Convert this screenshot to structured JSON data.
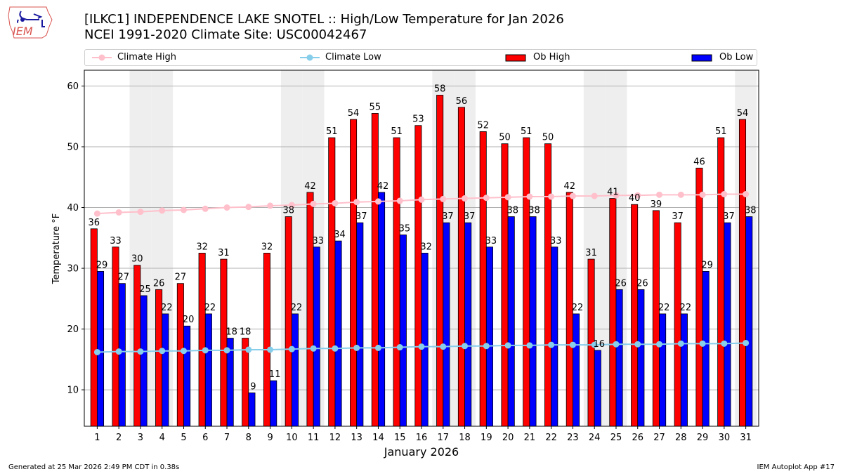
{
  "header": {
    "title_line1": "[ILKC1] INDEPENDENCE LAKE SNOTEL :: High/Low Temperature for Jan 2026",
    "title_line2": "NCEI 1991-2020 Climate Site: USC00042467",
    "logo_text": "IEM"
  },
  "footer": {
    "generated": "Generated at 25 Mar 2026 2:49 PM CDT in 0.38s",
    "app": "IEM Autoplot App #17"
  },
  "colors": {
    "ob_high": "#ff0000",
    "ob_low": "#0000ff",
    "climate_high": "#ffc0cb",
    "climate_low": "#87ceeb",
    "weekend_shade": "#eeeeee"
  },
  "chart_data": {
    "type": "bar",
    "title": "[ILKC1] INDEPENDENCE LAKE SNOTEL :: High/Low Temperature for Jan 2026",
    "subtitle": "NCEI 1991-2020 Climate Site: USC00042467",
    "xlabel": "January 2026",
    "ylabel": "Temperature °F",
    "ylim": [
      4,
      62.6
    ],
    "yticks": [
      10,
      20,
      30,
      40,
      50,
      60
    ],
    "grid": "y",
    "legend_placement": "top, above plot",
    "categories": [
      "1",
      "2",
      "3",
      "4",
      "5",
      "6",
      "7",
      "8",
      "9",
      "10",
      "11",
      "12",
      "13",
      "14",
      "15",
      "16",
      "17",
      "18",
      "19",
      "20",
      "21",
      "22",
      "23",
      "24",
      "25",
      "26",
      "27",
      "28",
      "29",
      "30",
      "31"
    ],
    "weekend_days": [
      3,
      4,
      10,
      11,
      17,
      18,
      24,
      25,
      31
    ],
    "series": [
      {
        "name": "Ob High",
        "kind": "bar",
        "values": [
          36,
          33,
          30,
          26,
          27,
          32,
          31,
          18,
          32,
          38,
          42,
          51,
          54,
          55,
          51,
          53,
          58,
          56,
          52,
          50,
          51,
          50,
          42,
          31,
          41,
          40,
          39,
          37,
          46,
          51,
          54
        ]
      },
      {
        "name": "Ob Low",
        "kind": "bar",
        "values": [
          29,
          27,
          25,
          22,
          20,
          22,
          18,
          9,
          11,
          22,
          33,
          34,
          37,
          42,
          35,
          32,
          37,
          37,
          33,
          38,
          38,
          33,
          22,
          16,
          26,
          26,
          22,
          22,
          29,
          37,
          38
        ]
      },
      {
        "name": "Climate High",
        "kind": "line",
        "values": [
          39.0,
          39.2,
          39.3,
          39.5,
          39.6,
          39.8,
          40.0,
          40.1,
          40.3,
          40.4,
          40.6,
          40.7,
          40.9,
          41.0,
          41.1,
          41.3,
          41.4,
          41.5,
          41.6,
          41.7,
          41.8,
          41.8,
          41.9,
          41.9,
          42.0,
          42.0,
          42.1,
          42.1,
          42.1,
          42.2,
          42.2
        ]
      },
      {
        "name": "Climate Low",
        "kind": "line",
        "values": [
          16.2,
          16.3,
          16.3,
          16.4,
          16.4,
          16.5,
          16.5,
          16.6,
          16.6,
          16.7,
          16.8,
          16.8,
          16.9,
          16.9,
          17.0,
          17.1,
          17.1,
          17.2,
          17.2,
          17.3,
          17.3,
          17.4,
          17.4,
          17.4,
          17.5,
          17.5,
          17.5,
          17.6,
          17.6,
          17.6,
          17.7
        ]
      }
    ]
  }
}
